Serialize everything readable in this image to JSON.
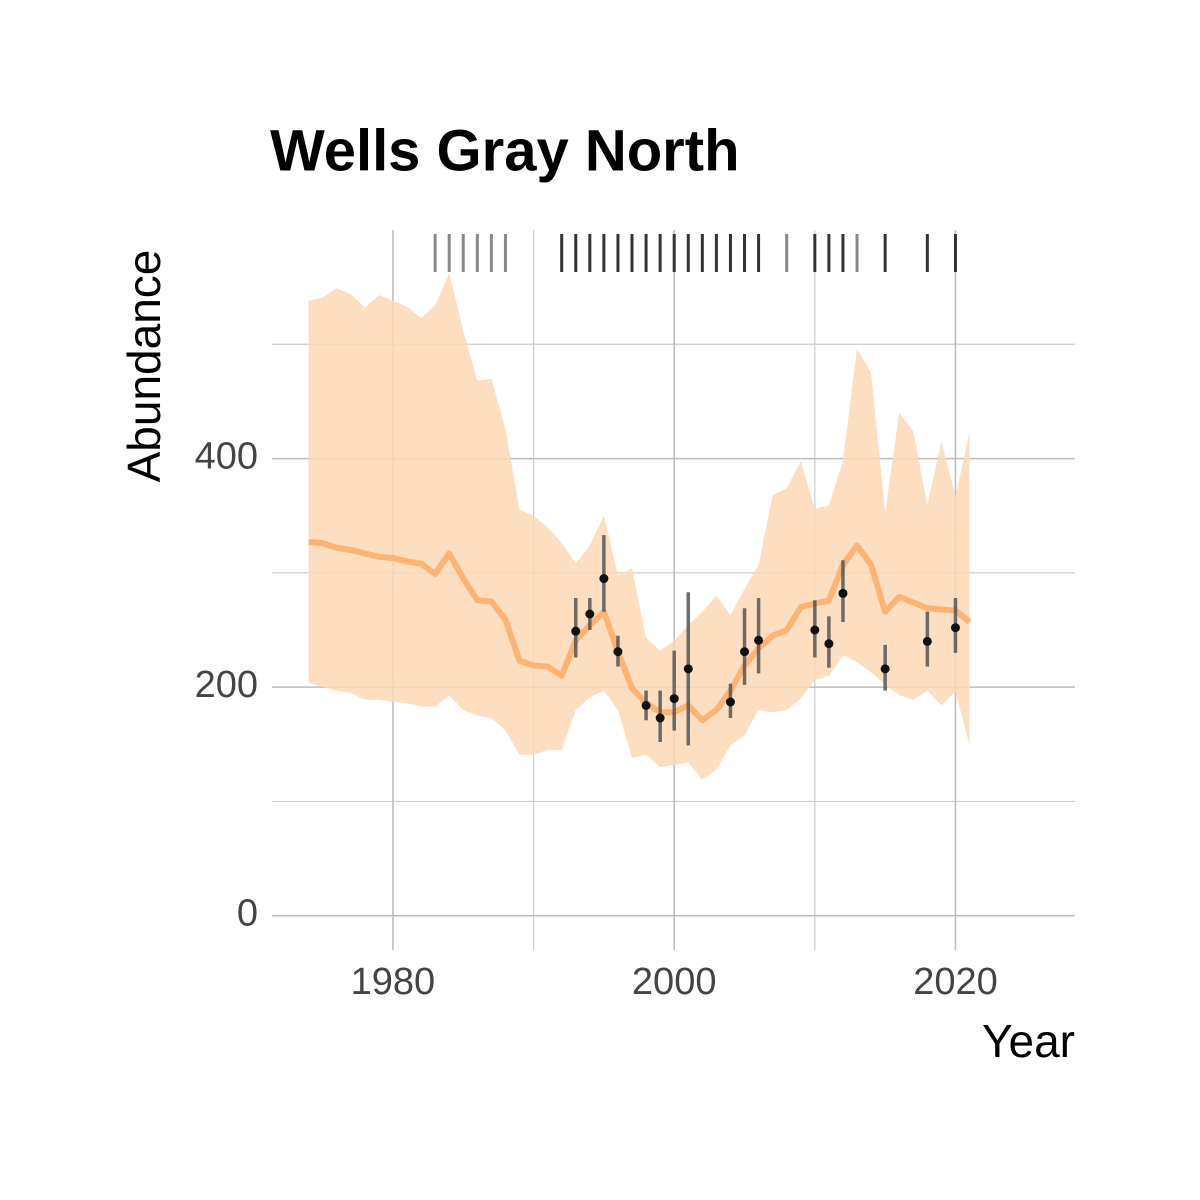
{
  "chart_data": {
    "type": "line",
    "title": "Wells Gray North",
    "xlabel": "Year",
    "ylabel": "Abundance",
    "xlim": [
      1971.4,
      2028.5
    ],
    "ylim": [
      -30,
      600
    ],
    "xticks": [
      1980,
      2000,
      2020
    ],
    "yticks": [
      0,
      200,
      400
    ],
    "x_minor_grid": [
      1990,
      2010
    ],
    "y_minor_grid": [
      100,
      300,
      500
    ],
    "grid": true,
    "x": [
      1974,
      1975,
      1976,
      1977,
      1978,
      1979,
      1980,
      1981,
      1982,
      1983,
      1984,
      1985,
      1986,
      1987,
      1988,
      1989,
      1990,
      1991,
      1992,
      1993,
      1994,
      1995,
      1996,
      1997,
      1998,
      1999,
      2000,
      2001,
      2002,
      2003,
      2004,
      2005,
      2006,
      2007,
      2008,
      2009,
      2010,
      2011,
      2012,
      2013,
      2014,
      2015,
      2016,
      2017,
      2018,
      2019,
      2020,
      2021
    ],
    "estimate": {
      "color": "#fdae6b",
      "values": [
        327,
        326,
        322,
        320,
        317,
        314,
        313,
        310,
        308,
        299,
        317,
        295,
        276,
        275,
        259,
        223,
        219,
        218,
        210,
        241,
        254,
        266,
        231,
        199,
        186,
        178,
        178,
        184,
        171,
        180,
        197,
        219,
        234,
        245,
        250,
        270,
        273,
        276,
        307,
        324,
        307,
        266,
        279,
        274,
        269,
        268,
        267,
        257
      ]
    },
    "ribbon": {
      "color": "#fdd8b5",
      "lower": [
        204,
        200,
        197,
        195,
        189,
        189,
        187,
        186,
        183,
        183,
        193,
        180,
        175,
        173,
        162,
        141,
        141,
        145,
        145,
        180,
        191,
        197,
        180,
        138,
        141,
        130,
        132,
        134,
        119,
        128,
        149,
        158,
        180,
        178,
        180,
        190,
        206,
        210,
        228,
        222,
        213,
        202,
        193,
        189,
        197,
        184,
        196,
        149
      ],
      "upper": [
        538,
        541,
        549,
        544,
        532,
        543,
        538,
        533,
        523,
        534,
        562,
        512,
        468,
        470,
        426,
        355,
        350,
        340,
        326,
        308,
        324,
        350,
        298,
        304,
        243,
        232,
        241,
        254,
        266,
        280,
        263,
        286,
        307,
        368,
        374,
        398,
        356,
        359,
        398,
        496,
        475,
        353,
        440,
        424,
        359,
        415,
        367,
        423
      ]
    },
    "observations": {
      "color": "#111111",
      "error_color": "#555555",
      "x": [
        1993,
        1994,
        1995,
        1996,
        1998,
        1999,
        2000,
        2001,
        2004,
        2005,
        2006,
        2010,
        2011,
        2012,
        2015,
        2018,
        2020
      ],
      "values": [
        249,
        264,
        295,
        231,
        184,
        173,
        190,
        216,
        187,
        231,
        241,
        250,
        238,
        282,
        216,
        240,
        252
      ],
      "lower": [
        226,
        250,
        266,
        218,
        171,
        152,
        162,
        149,
        173,
        202,
        212,
        226,
        217,
        257,
        197,
        218,
        230
      ],
      "upper": [
        278,
        278,
        333,
        245,
        197,
        197,
        232,
        283,
        203,
        269,
        278,
        276,
        262,
        311,
        237,
        266,
        278
      ]
    },
    "rug": [
      {
        "color": "#888888",
        "x": [
          1983,
          1984,
          1985,
          1986,
          1987,
          1988,
          2008,
          2013
        ]
      },
      {
        "color": "#333333",
        "x": [
          1992,
          1993,
          1994,
          1995,
          1996,
          1997,
          1998,
          1999,
          2000,
          2001,
          2002,
          2003,
          2004,
          2005,
          2006,
          2010,
          2011,
          2012,
          2015,
          2018,
          2020
        ]
      }
    ]
  }
}
